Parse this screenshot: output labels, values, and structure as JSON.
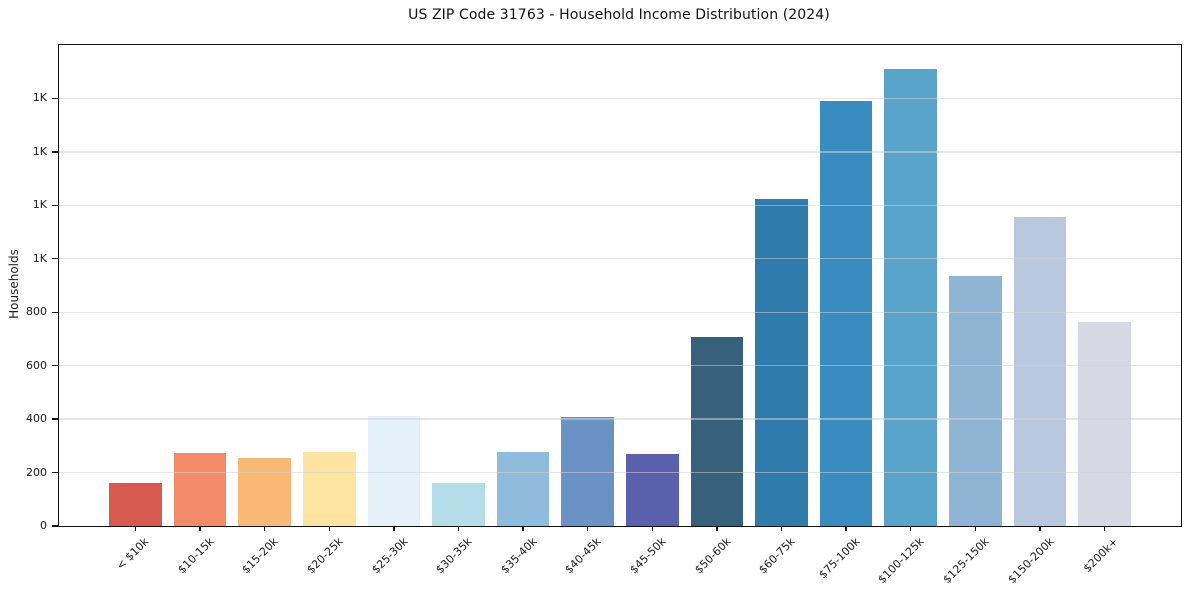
{
  "figure": {
    "title": "US ZIP Code 31763 - Household Income Distribution (2024)"
  },
  "chart_data": {
    "type": "bar",
    "title": "US ZIP Code 31763 - Household Income Distribution (2024)",
    "xlabel": "",
    "ylabel": "Households",
    "categories": [
      "< $10k",
      "$10-15k",
      "$15-20k",
      "$20-25k",
      "$25-30k",
      "$30-35k",
      "$35-40k",
      "$40-45k",
      "$45-50k",
      "$50-60k",
      "$60-75k",
      "$75-100k",
      "$100-125k",
      "$125-150k",
      "$150-200k",
      "$200k+"
    ],
    "values": [
      160,
      272,
      254,
      278,
      410,
      160,
      278,
      407,
      268,
      709,
      1222,
      1592,
      1709,
      935,
      1156,
      764
    ],
    "bar_colors": [
      "#d75a51",
      "#f48a68",
      "#fab876",
      "#fde5a1",
      "#e4f1f6",
      "#b4dce9",
      "#8fbcdc",
      "#6b92c4",
      "#5a60ab",
      "#37607b",
      "#2e7bac",
      "#398cbf",
      "#5ba4c9",
      "#90b5d4",
      "#b9c8df",
      "#d7d8e4"
    ],
    "ylim": [
      0,
      1800
    ],
    "yticks": [
      {
        "value": 0,
        "label": "0"
      },
      {
        "value": 200,
        "label": "200"
      },
      {
        "value": 400,
        "label": "400"
      },
      {
        "value": 600,
        "label": "600"
      },
      {
        "value": 800,
        "label": "800"
      },
      {
        "value": 1000,
        "label": "1K"
      },
      {
        "value": 1200,
        "label": "1K"
      },
      {
        "value": 1400,
        "label": "1K"
      },
      {
        "value": 1600,
        "label": "1K"
      }
    ],
    "grid": "horizontal",
    "legend": "none",
    "x_tick_rotation_deg": 45
  }
}
